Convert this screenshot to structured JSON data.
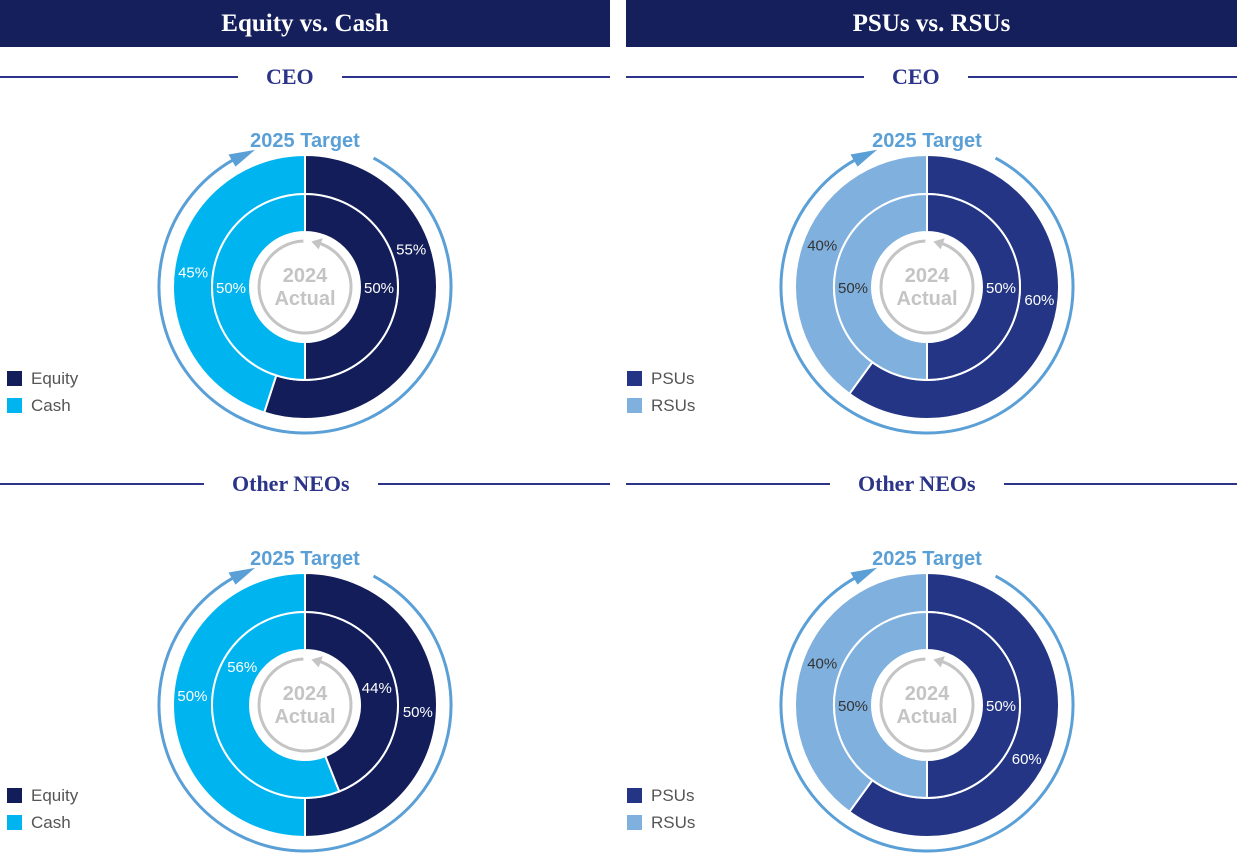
{
  "panels": [
    {
      "header": "Equity vs. Cash"
    },
    {
      "header": "PSUs vs. RSUs"
    }
  ],
  "sections": [
    "CEO",
    "Other NEOs"
  ],
  "chart_data": [
    {
      "type": "pie",
      "panel": "Equity vs. Cash",
      "group": "CEO",
      "outer_title": "2025 Target",
      "inner_title": [
        "2024",
        "Actual"
      ],
      "categories": [
        "Equity",
        "Cash"
      ],
      "colors": [
        "#121d5a",
        "#00b5ef"
      ],
      "label_colors": [
        "#ffffff",
        "#ffffff"
      ],
      "series": [
        {
          "name": "2025 Target",
          "values": [
            55,
            45
          ]
        },
        {
          "name": "2024 Actual",
          "values": [
            50,
            50
          ]
        }
      ]
    },
    {
      "type": "pie",
      "panel": "PSUs vs. RSUs",
      "group": "CEO",
      "outer_title": "2025 Target",
      "inner_title": [
        "2024",
        "Actual"
      ],
      "categories": [
        "PSUs",
        "RSUs"
      ],
      "colors": [
        "#233584",
        "#80b0de"
      ],
      "label_colors": [
        "#ffffff",
        "#333333"
      ],
      "series": [
        {
          "name": "2025 Target",
          "values": [
            60,
            40
          ]
        },
        {
          "name": "2024 Actual",
          "values": [
            50,
            50
          ]
        }
      ]
    },
    {
      "type": "pie",
      "panel": "Equity vs. Cash",
      "group": "Other NEOs",
      "outer_title": "2025 Target",
      "inner_title": [
        "2024",
        "Actual"
      ],
      "categories": [
        "Equity",
        "Cash"
      ],
      "colors": [
        "#121d5a",
        "#00b5ef"
      ],
      "label_colors": [
        "#ffffff",
        "#ffffff"
      ],
      "series": [
        {
          "name": "2025 Target",
          "values": [
            50,
            50
          ]
        },
        {
          "name": "2024 Actual",
          "values": [
            44,
            56
          ]
        }
      ]
    },
    {
      "type": "pie",
      "panel": "PSUs vs. RSUs",
      "group": "Other NEOs",
      "outer_title": "2025 Target",
      "inner_title": [
        "2024",
        "Actual"
      ],
      "categories": [
        "PSUs",
        "RSUs"
      ],
      "colors": [
        "#233584",
        "#80b0de"
      ],
      "label_colors": [
        "#ffffff",
        "#333333"
      ],
      "series": [
        {
          "name": "2025 Target",
          "values": [
            60,
            40
          ]
        },
        {
          "name": "2024 Actual",
          "values": [
            50,
            50
          ]
        }
      ]
    }
  ],
  "accent_color": "#5a9fd6",
  "header_color": "#141f5c"
}
